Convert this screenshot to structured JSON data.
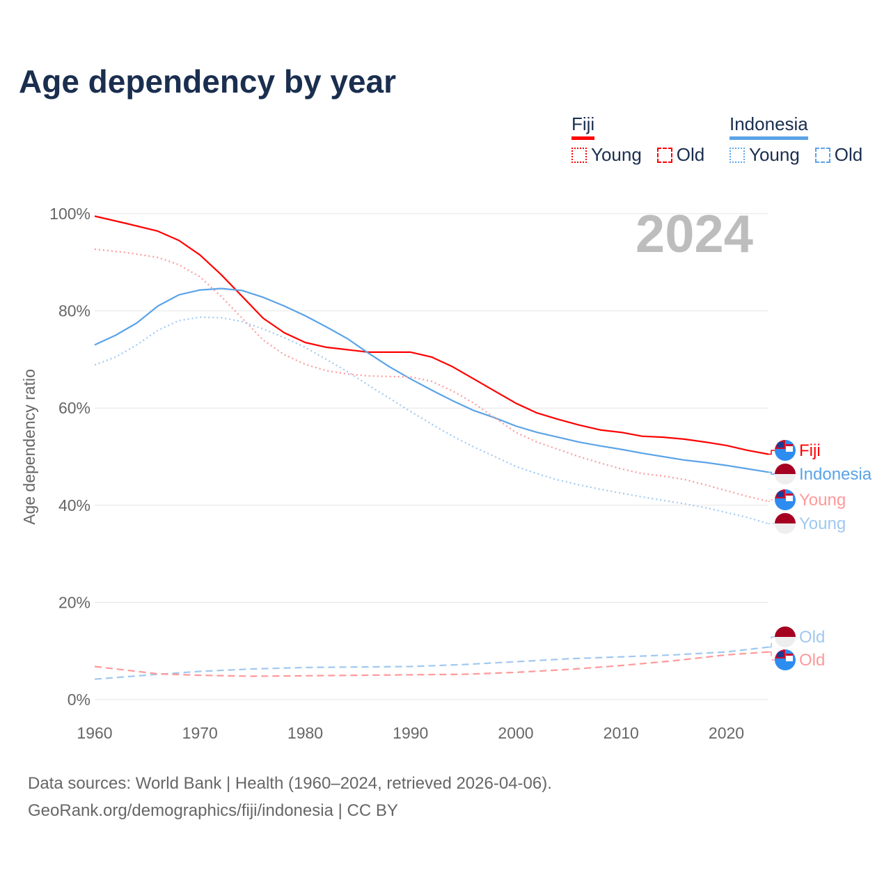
{
  "title": "Age dependency by year",
  "year_watermark": "2024",
  "legend": [
    {
      "name": "Fiji",
      "color": "#ff0000",
      "young": "Young",
      "old": "Old"
    },
    {
      "name": "Indonesia",
      "color": "#5ba3e8",
      "young": "Young",
      "old": "Old"
    }
  ],
  "source": {
    "line1": "Data sources: World Bank | Health (1960–2024, retrieved 2026-04-06).",
    "line2": "GeoRank.org/demographics/fiji/indonesia | CC BY"
  },
  "chart_data": {
    "type": "line",
    "title": "Age dependency by year",
    "xlabel": "",
    "ylabel": "Age dependency ratio",
    "xlim": [
      1960,
      2024
    ],
    "ylim": [
      0,
      100
    ],
    "x_ticks": [
      "1960",
      "1970",
      "1980",
      "1990",
      "2000",
      "2010",
      "2020"
    ],
    "y_ticks": [
      "0%",
      "20%",
      "40%",
      "60%",
      "80%",
      "100%"
    ],
    "grid": true,
    "series": [
      {
        "name": "Fiji",
        "label": "Fiji",
        "country": "Fiji",
        "style": "solid",
        "color": "#ff0000",
        "x": [
          1960,
          1963,
          1966,
          1968,
          1970,
          1972,
          1974,
          1976,
          1978,
          1980,
          1982,
          1984,
          1986,
          1990,
          1992,
          1994,
          1996,
          1998,
          2000,
          2002,
          2004,
          2006,
          2008,
          2010,
          2012,
          2014,
          2016,
          2018,
          2020,
          2022,
          2024
        ],
        "y": [
          99.5,
          98,
          96.4,
          94.5,
          91.5,
          87.5,
          83,
          78.5,
          75.5,
          73.5,
          72.5,
          72,
          71.5,
          71.5,
          70.5,
          68.5,
          66,
          63.5,
          61,
          59,
          57.7,
          56.5,
          55.5,
          55,
          54.2,
          54,
          53.6,
          53,
          52.3,
          51.3,
          50.5
        ]
      },
      {
        "name": "Indonesia",
        "label": "Indonesia",
        "country": "Indonesia",
        "style": "solid",
        "color": "#5ba3e8",
        "x": [
          1960,
          1962,
          1964,
          1966,
          1968,
          1970,
          1972,
          1974,
          1976,
          1978,
          1980,
          1982,
          1984,
          1986,
          1988,
          1990,
          1992,
          1994,
          1996,
          1998,
          2000,
          2002,
          2004,
          2006,
          2008,
          2010,
          2012,
          2014,
          2016,
          2018,
          2020,
          2022,
          2024
        ],
        "y": [
          73,
          75,
          77.5,
          81,
          83.3,
          84.3,
          84.6,
          84.2,
          82.8,
          81,
          79,
          76.7,
          74.3,
          71.3,
          68.5,
          66,
          63.7,
          61.5,
          59.5,
          58,
          56.3,
          55,
          54,
          53,
          52.2,
          51.5,
          50.7,
          50,
          49.3,
          48.8,
          48.2,
          47.5,
          46.8
        ]
      },
      {
        "name": "Fiji Young",
        "label": "Young",
        "country": "Fiji",
        "style": "dotted",
        "color": "#ff9999",
        "x": [
          1960,
          1963,
          1966,
          1968,
          1970,
          1972,
          1974,
          1976,
          1978,
          1980,
          1982,
          1984,
          1986,
          1990,
          1992,
          1994,
          1996,
          1998,
          2000,
          2002,
          2004,
          2006,
          2008,
          2010,
          2012,
          2014,
          2016,
          2018,
          2020,
          2022,
          2024
        ],
        "y": [
          92.7,
          92,
          91,
          89.5,
          87,
          83,
          78.5,
          74,
          71,
          69,
          67.7,
          67,
          66.6,
          66.4,
          65.5,
          63.5,
          61,
          58,
          55,
          53,
          51.5,
          50,
          48.7,
          47.5,
          46.5,
          46,
          45.3,
          44.2,
          43,
          41.8,
          40.8
        ]
      },
      {
        "name": "Indonesia Young",
        "label": "Young",
        "country": "Indonesia",
        "style": "dotted",
        "color": "#a0c8f0",
        "x": [
          1960,
          1962,
          1964,
          1966,
          1968,
          1970,
          1972,
          1974,
          1976,
          1978,
          1980,
          1982,
          1984,
          1986,
          1988,
          1990,
          1992,
          1994,
          1996,
          1998,
          2000,
          2002,
          2004,
          2006,
          2008,
          2010,
          2012,
          2014,
          2016,
          2018,
          2020,
          2022,
          2024
        ],
        "y": [
          68.9,
          70.5,
          73,
          76,
          78,
          78.7,
          78.6,
          77.8,
          76.3,
          74.5,
          72.5,
          70,
          67.5,
          64.7,
          62,
          59.3,
          56.7,
          54.2,
          52,
          50,
          48,
          46.5,
          45.2,
          44.2,
          43.3,
          42.5,
          41.7,
          41,
          40.3,
          39.5,
          38.5,
          37.5,
          36.2
        ]
      },
      {
        "name": "Indonesia Old",
        "label": "Old",
        "country": "Indonesia",
        "style": "dashed",
        "color": "#a0c8f0",
        "x": [
          1960,
          1966,
          1970,
          1975,
          1980,
          1990,
          1995,
          2000,
          2005,
          2010,
          2015,
          2020,
          2024
        ],
        "y": [
          4.2,
          5.2,
          5.8,
          6.3,
          6.6,
          6.8,
          7.2,
          7.8,
          8.4,
          8.8,
          9.2,
          9.8,
          10.8
        ]
      },
      {
        "name": "Fiji Old",
        "label": "Old",
        "country": "Fiji",
        "style": "dashed",
        "color": "#ff9999",
        "x": [
          1960,
          1966,
          1970,
          1975,
          1985,
          1995,
          2000,
          2005,
          2010,
          2015,
          2020,
          2024
        ],
        "y": [
          6.8,
          5.3,
          5,
          4.8,
          5,
          5.2,
          5.6,
          6.2,
          7,
          8,
          9.2,
          9.8
        ]
      }
    ]
  }
}
